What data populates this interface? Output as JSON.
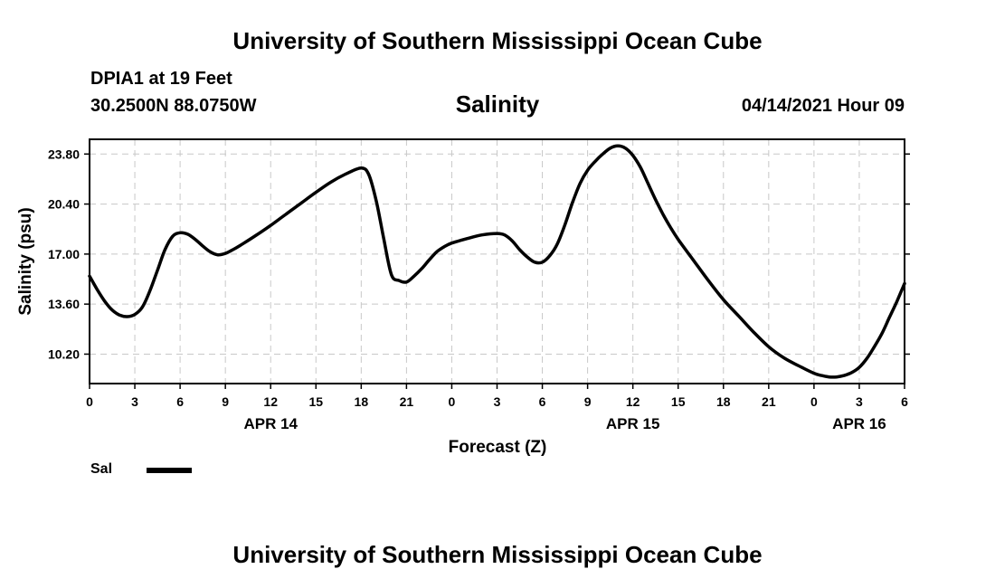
{
  "header": {
    "title": "University of Southern Mississippi Ocean Cube",
    "station": "DPIA1 at 19 Feet",
    "coordinates": "30.2500N  88.0750W",
    "parameter": "Salinity",
    "datetime": "04/14/2021 Hour 09"
  },
  "footer": {
    "title": "University of Southern Mississippi Ocean Cube"
  },
  "legend": {
    "label": "Sal",
    "color": "#000000"
  },
  "chart_data": {
    "type": "line",
    "title": "Salinity",
    "xlabel": "Forecast (Z)",
    "ylabel": "Salinity (psu)",
    "x_unit": "hours",
    "xlim": [
      0,
      54
    ],
    "ylim": [
      8.2,
      24.8
    ],
    "grid": true,
    "legend_position": "bottom-left",
    "x_ticks": [
      {
        "x": 0,
        "label": "0"
      },
      {
        "x": 3,
        "label": "3"
      },
      {
        "x": 6,
        "label": "6"
      },
      {
        "x": 9,
        "label": "9"
      },
      {
        "x": 12,
        "label": "12"
      },
      {
        "x": 15,
        "label": "15"
      },
      {
        "x": 18,
        "label": "18"
      },
      {
        "x": 21,
        "label": "21"
      },
      {
        "x": 24,
        "label": "0"
      },
      {
        "x": 27,
        "label": "3"
      },
      {
        "x": 30,
        "label": "6"
      },
      {
        "x": 33,
        "label": "9"
      },
      {
        "x": 36,
        "label": "12"
      },
      {
        "x": 39,
        "label": "15"
      },
      {
        "x": 42,
        "label": "18"
      },
      {
        "x": 45,
        "label": "21"
      },
      {
        "x": 48,
        "label": "0"
      },
      {
        "x": 51,
        "label": "3"
      },
      {
        "x": 54,
        "label": "6"
      }
    ],
    "date_labels": [
      {
        "x": 12,
        "label": "APR 14"
      },
      {
        "x": 36,
        "label": "APR 15"
      },
      {
        "x": 51,
        "label": "APR 16"
      }
    ],
    "y_ticks": [
      {
        "y": 10.2,
        "label": "10.20"
      },
      {
        "y": 13.6,
        "label": "13.60"
      },
      {
        "y": 17.0,
        "label": "17.00"
      },
      {
        "y": 20.4,
        "label": "20.40"
      },
      {
        "y": 23.8,
        "label": "23.80"
      }
    ],
    "series": [
      {
        "name": "Sal",
        "color": "#000000",
        "x": [
          0,
          0.5,
          1,
          1.5,
          2,
          2.5,
          3,
          3.5,
          4,
          4.5,
          5,
          5.5,
          6,
          6.5,
          7,
          7.5,
          8,
          8.5,
          9,
          9.5,
          10,
          11,
          12,
          13,
          14,
          15,
          16,
          17,
          18,
          18.5,
          19,
          19.5,
          20,
          20.5,
          21,
          21.5,
          22,
          22.5,
          23,
          23.5,
          24,
          25,
          26,
          27,
          27.5,
          28,
          28.5,
          29,
          29.5,
          30,
          30.5,
          31,
          31.5,
          32,
          32.5,
          33,
          33.5,
          34,
          34.5,
          35,
          35.5,
          36,
          36.5,
          37,
          37.5,
          38,
          38.5,
          39,
          40,
          41,
          42,
          43,
          44,
          45,
          46,
          47,
          48,
          48.5,
          49,
          49.5,
          50,
          50.5,
          51,
          51.5,
          52,
          52.5,
          53,
          53.5,
          54
        ],
        "values": [
          15.5,
          14.6,
          13.8,
          13.2,
          12.85,
          12.75,
          12.9,
          13.4,
          14.5,
          15.9,
          17.3,
          18.2,
          18.45,
          18.35,
          18.0,
          17.55,
          17.15,
          16.95,
          17.05,
          17.3,
          17.6,
          18.25,
          18.95,
          19.7,
          20.45,
          21.2,
          21.9,
          22.45,
          22.85,
          22.4,
          20.6,
          18.0,
          15.6,
          15.2,
          15.1,
          15.5,
          16.0,
          16.6,
          17.15,
          17.5,
          17.75,
          18.05,
          18.3,
          18.4,
          18.3,
          17.9,
          17.3,
          16.8,
          16.45,
          16.45,
          16.9,
          17.7,
          19.0,
          20.5,
          21.8,
          22.7,
          23.3,
          23.8,
          24.2,
          24.35,
          24.2,
          23.7,
          22.9,
          21.8,
          20.7,
          19.7,
          18.8,
          18.0,
          16.6,
          15.2,
          13.9,
          12.8,
          11.7,
          10.7,
          9.95,
          9.4,
          8.9,
          8.75,
          8.65,
          8.65,
          8.75,
          8.95,
          9.3,
          9.9,
          10.7,
          11.6,
          12.7,
          13.8,
          15.0
        ]
      }
    ]
  }
}
